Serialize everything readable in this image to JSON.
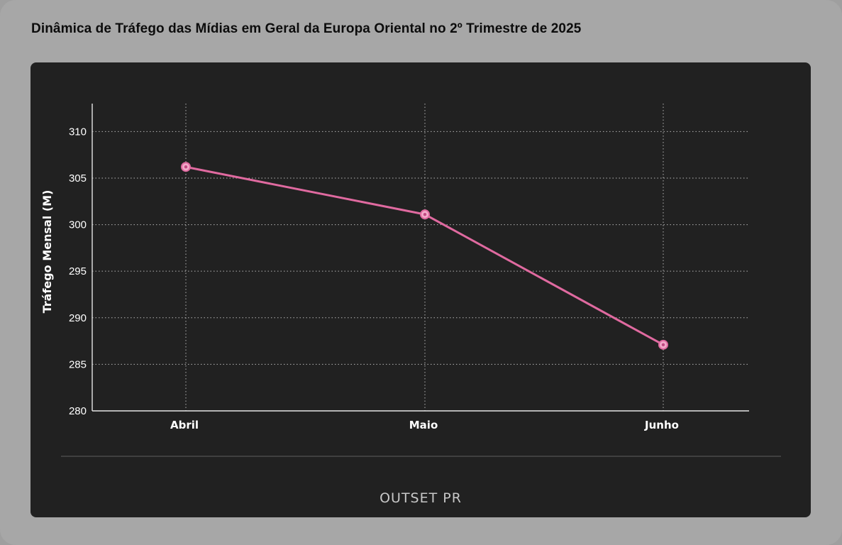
{
  "title": "Dinâmica de Tráfego das Mídias em Geral da Europa Oriental no 2º Trimestre de 2025",
  "brand": "OUTSET PR",
  "colors": {
    "background": "#a7a7a7",
    "panel": "#212121",
    "line": "#e06aa0",
    "marker_fill": "#f2a9c9",
    "grid": "#cfcfcf",
    "axis": "#e6e6e6",
    "text": "#ffffff"
  },
  "chart_data": {
    "type": "line",
    "title": "Dinâmica de Tráfego das Mídias em Geral da Europa Oriental no 2º Trimestre de 2025",
    "xlabel": "",
    "ylabel": "Tráfego Mensal (M)",
    "categories": [
      "Abril",
      "Maio",
      "Junho"
    ],
    "series": [
      {
        "values": [
          306.2,
          301.1,
          287.1
        ]
      }
    ],
    "ylim": [
      280,
      313
    ],
    "yticks": [
      280,
      285,
      290,
      295,
      300,
      305,
      310
    ],
    "grid": true,
    "grid_style": "dotted",
    "markers": "circle"
  }
}
